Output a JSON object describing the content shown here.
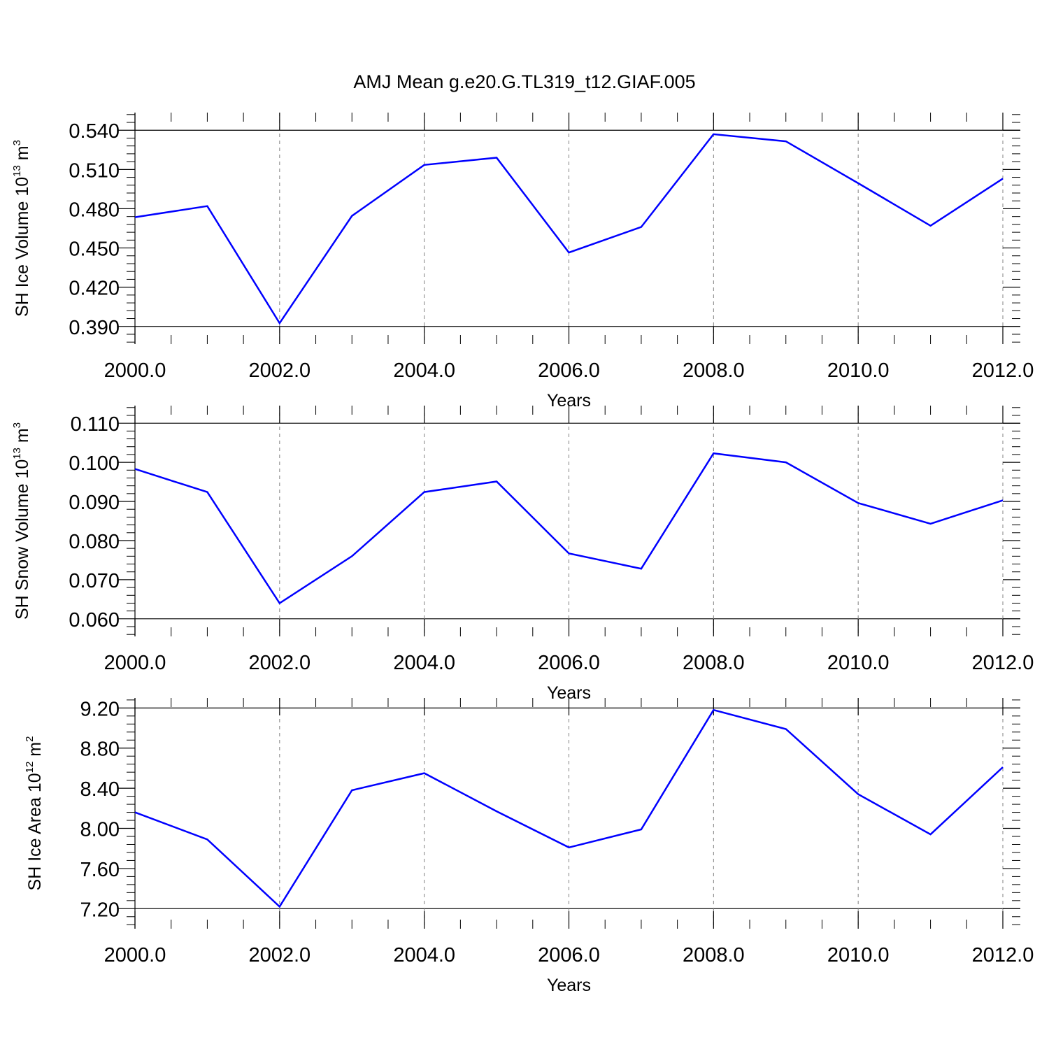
{
  "title": "AMJ Mean g.e20.G.TL319_t12.GIAF.005",
  "colors": {
    "line": "#0000ff",
    "axis": "#000000",
    "grid": "#808080"
  },
  "chart_data": [
    {
      "type": "line",
      "title": "",
      "xlabel": "Years",
      "ylabel": {
        "prefix": "SH Ice Volume 10",
        "exponent": "13",
        "unit": " m",
        "unit_exponent": "3"
      },
      "xlim": [
        2000,
        2012.2
      ],
      "ylim": [
        0.3765,
        0.5535
      ],
      "x_ticks": [
        2000,
        2002,
        2004,
        2006,
        2008,
        2010,
        2012
      ],
      "x_tick_labels": [
        "2000.0",
        "2002.0",
        "2004.0",
        "2006.0",
        "2008.0",
        "2010.0",
        "2012.0"
      ],
      "y_ticks": [
        0.39,
        0.42,
        0.45,
        0.48,
        0.51,
        0.54
      ],
      "y_tick_labels": [
        "0.390",
        "0.420",
        "0.450",
        "0.480",
        "0.510",
        "0.540"
      ],
      "y_minor_step": 0.006,
      "x_minor_step": 0.5,
      "grid": "vertical dashed at major x ticks",
      "series": [
        {
          "x": [
            2000,
            2001,
            2002,
            2003,
            2004,
            2005,
            2006,
            2007,
            2008,
            2009,
            2010,
            2011,
            2012
          ],
          "y": [
            0.4735,
            0.482,
            0.3925,
            0.4745,
            0.5135,
            0.519,
            0.4465,
            0.466,
            0.537,
            0.5315,
            0.4995,
            0.467,
            0.503
          ]
        }
      ]
    },
    {
      "type": "line",
      "title": "",
      "xlabel": "Years",
      "ylabel": {
        "prefix": "SH Snow Volume 10",
        "exponent": "13",
        "unit": " m",
        "unit_exponent": "3"
      },
      "xlim": [
        2000,
        2012.2
      ],
      "ylim": [
        0.0555,
        0.1145
      ],
      "x_ticks": [
        2000,
        2002,
        2004,
        2006,
        2008,
        2010,
        2012
      ],
      "x_tick_labels": [
        "2000.0",
        "2002.0",
        "2004.0",
        "2006.0",
        "2008.0",
        "2010.0",
        "2012.0"
      ],
      "y_ticks": [
        0.06,
        0.07,
        0.08,
        0.09,
        0.1,
        0.11
      ],
      "y_tick_labels": [
        "0.060",
        "0.070",
        "0.080",
        "0.090",
        "0.100",
        "0.110"
      ],
      "y_minor_step": 0.002,
      "x_minor_step": 0.5,
      "grid": "vertical dashed at major x ticks",
      "series": [
        {
          "x": [
            2000,
            2001,
            2002,
            2003,
            2004,
            2005,
            2006,
            2007,
            2008,
            2009,
            2010,
            2011,
            2012
          ],
          "y": [
            0.0983,
            0.0924,
            0.064,
            0.076,
            0.0924,
            0.0951,
            0.0767,
            0.0728,
            0.1023,
            0.1,
            0.0896,
            0.0843,
            0.0903
          ]
        }
      ]
    },
    {
      "type": "line",
      "title": "",
      "xlabel": "Years",
      "ylabel": {
        "prefix": "SH Ice Area 10",
        "exponent": "12",
        "unit": " m",
        "unit_exponent": "2"
      },
      "xlim": [
        2000,
        2012.2
      ],
      "ylim": [
        7.0,
        9.3
      ],
      "x_ticks": [
        2000,
        2002,
        2004,
        2006,
        2008,
        2010,
        2012
      ],
      "x_tick_labels": [
        "2000.0",
        "2002.0",
        "2004.0",
        "2006.0",
        "2008.0",
        "2010.0",
        "2012.0"
      ],
      "y_ticks": [
        7.2,
        7.6,
        8.0,
        8.4,
        8.8,
        9.2
      ],
      "y_tick_labels": [
        "7.20",
        "7.60",
        "8.00",
        "8.40",
        "8.80",
        "9.20"
      ],
      "y_minor_step": 0.08,
      "x_minor_step": 0.5,
      "grid": "vertical dashed at major x ticks",
      "series": [
        {
          "x": [
            2000,
            2001,
            2002,
            2003,
            2004,
            2005,
            2006,
            2007,
            2008,
            2009,
            2010,
            2011,
            2012
          ],
          "y": [
            8.16,
            7.89,
            7.22,
            8.38,
            8.55,
            8.17,
            7.81,
            7.99,
            9.18,
            8.99,
            8.34,
            7.94,
            8.61
          ]
        }
      ]
    }
  ]
}
